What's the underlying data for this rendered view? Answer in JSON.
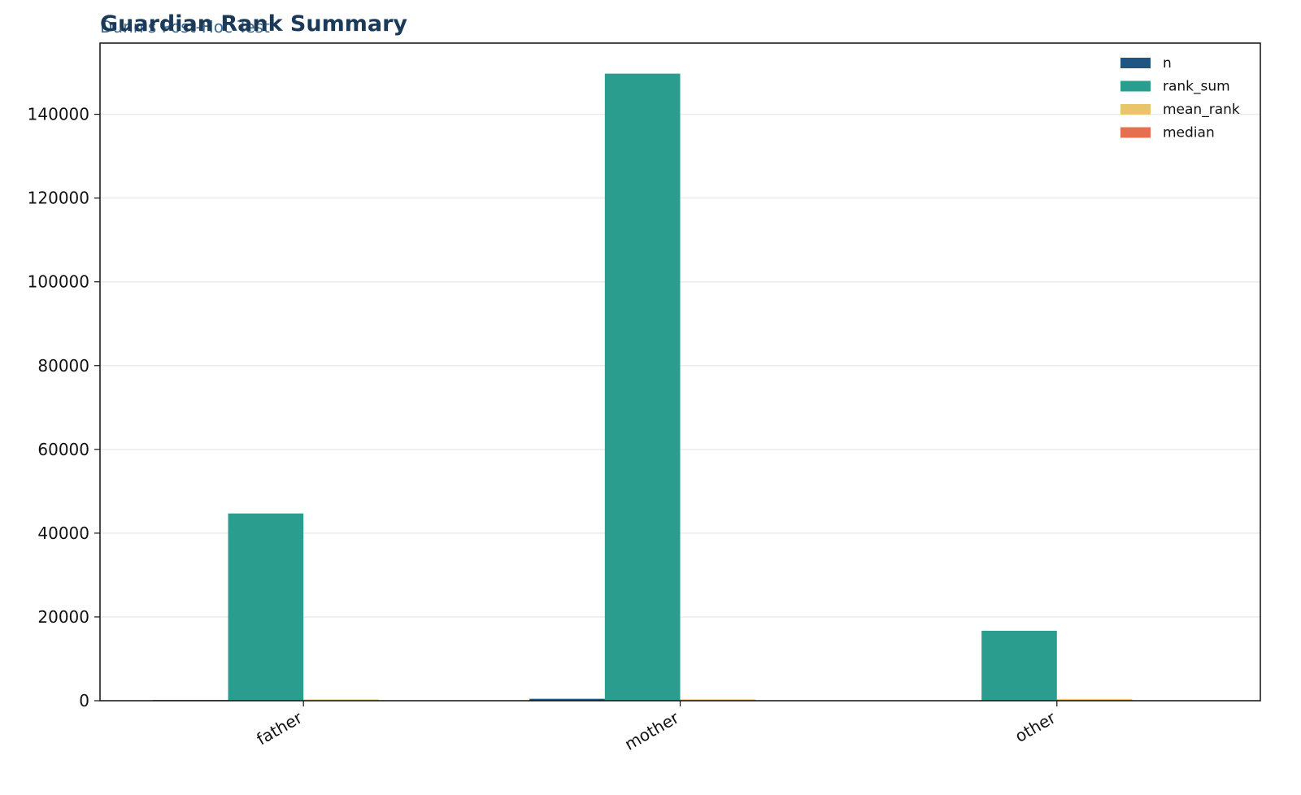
{
  "chart_data": {
    "type": "bar",
    "title": "Guardian Rank Summary",
    "subtitle": "Dunn's Post-Hoc Test",
    "categories": [
      "father",
      "mother",
      "other"
    ],
    "series": [
      {
        "name": "n",
        "color": "#1f5582",
        "values": [
          153,
          455,
          41
        ]
      },
      {
        "name": "rank_sum",
        "color": "#2a9d8f",
        "values": [
          44700,
          149700,
          16700
        ]
      },
      {
        "name": "mean_rank",
        "color": "#e9c46a",
        "values": [
          292,
          329,
          407
        ]
      },
      {
        "name": "median",
        "color": "#e76f51",
        "values": [
          11,
          12,
          10
        ]
      }
    ],
    "ylim": [
      0,
      157000
    ],
    "yticks": [
      0,
      20000,
      40000,
      60000,
      80000,
      100000,
      120000,
      140000
    ],
    "grid": true,
    "legend": "upper right"
  }
}
